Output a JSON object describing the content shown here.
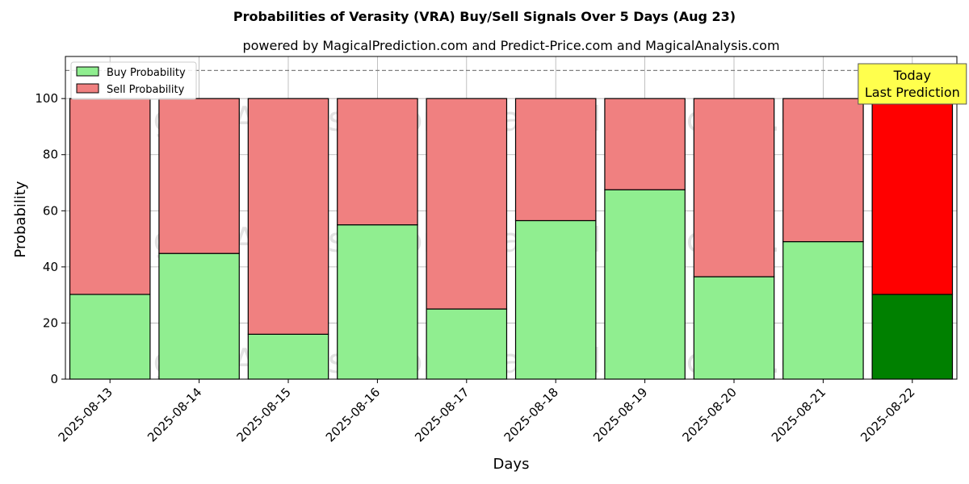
{
  "chart_data": {
    "type": "bar",
    "stacked": true,
    "title": "Probabilities of Verasity (VRA) Buy/Sell Signals Over 5 Days (Aug 23)",
    "subtitle": "powered by MagicalPrediction.com and Predict-Price.com and MagicalAnalysis.com",
    "xlabel": "Days",
    "ylabel": "Probability",
    "ylim": [
      0,
      115
    ],
    "yticks": [
      0,
      20,
      40,
      60,
      80,
      100
    ],
    "grid": true,
    "legend_position": "top-left",
    "categories": [
      "2025-08-13",
      "2025-08-14",
      "2025-08-15",
      "2025-08-16",
      "2025-08-17",
      "2025-08-18",
      "2025-08-19",
      "2025-08-20",
      "2025-08-21",
      "2025-08-22"
    ],
    "series": [
      {
        "name": "Buy Probability",
        "color": "#90ee90",
        "highlight_color": "#008000",
        "values": [
          30.2,
          44.8,
          16.0,
          55.0,
          25.0,
          56.5,
          67.5,
          36.5,
          49.0,
          30.2
        ]
      },
      {
        "name": "Sell Probability",
        "color": "#f08080",
        "highlight_color": "#ff0000",
        "values": [
          69.8,
          55.2,
          84.0,
          45.0,
          75.0,
          43.5,
          32.5,
          63.5,
          51.0,
          69.8
        ]
      }
    ],
    "highlight_index": 9,
    "reference_line": {
      "y": 110,
      "style": "dashed",
      "color": "#808080"
    },
    "annotation": {
      "lines": [
        "Today",
        "Last Prediction"
      ],
      "background": "#ffff4d",
      "category_index": 9
    },
    "watermarks": [
      "MagicalAnalysis.com",
      "MagicalPrediction.com",
      "MagicalAnalysis.com",
      "MagicalPrediction.com",
      "MagicalAnalysis.com",
      "MagicalPrediction.com"
    ]
  }
}
